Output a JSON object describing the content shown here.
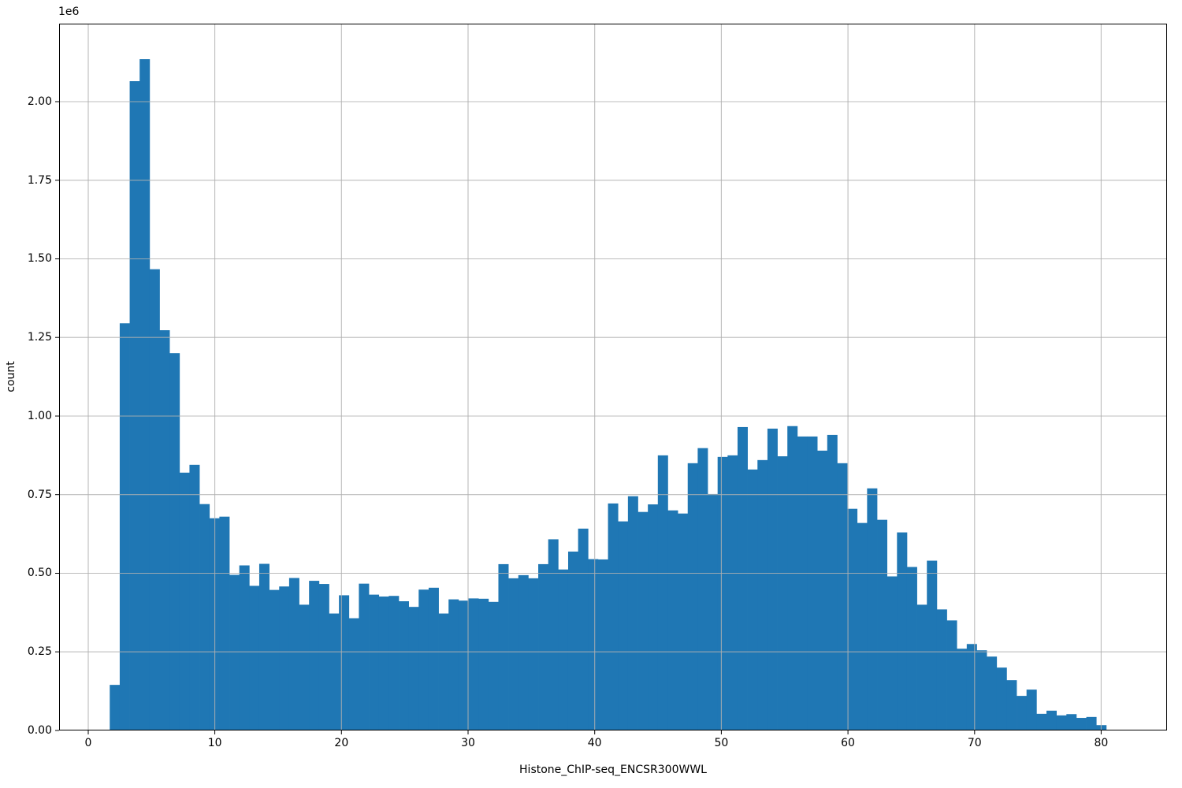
{
  "chart_data": {
    "type": "bar",
    "subtype": "histogram",
    "title": "",
    "xlabel": "Histone_ChIP-seq_ENCSR300WWL",
    "ylabel": "count",
    "offset_text": "1e6",
    "bar_color": "#1f77b4",
    "grid_color": "#b0b0b0",
    "spine_color": "#000000",
    "grid": true,
    "legend": false,
    "xlim": [
      -2.3,
      85.2
    ],
    "ylim": [
      0,
      2248000
    ],
    "x_ticks": [
      0,
      10,
      20,
      30,
      40,
      50,
      60,
      70,
      80
    ],
    "x_tick_labels": [
      "0",
      "10",
      "20",
      "30",
      "40",
      "50",
      "60",
      "70",
      "80"
    ],
    "y_ticks": [
      0,
      250000,
      500000,
      750000,
      1000000,
      1250000,
      1500000,
      1750000,
      2000000
    ],
    "y_tick_labels": [
      "0.00",
      "0.25",
      "0.50",
      "0.75",
      "1.00",
      "1.25",
      "1.50",
      "1.75",
      "2.00"
    ],
    "bin_start": 1.7,
    "bin_width": 0.787,
    "counts": [
      145000,
      1295000,
      2065000,
      2135000,
      1467000,
      1273000,
      1200000,
      820000,
      845000,
      720000,
      675000,
      680000,
      495000,
      525000,
      460000,
      530000,
      447000,
      458000,
      485000,
      400000,
      476000,
      466000,
      372000,
      430000,
      357000,
      467000,
      432000,
      426000,
      428000,
      411000,
      393000,
      448000,
      454000,
      372000,
      417000,
      413000,
      420000,
      419000,
      409000,
      529000,
      484000,
      494000,
      484000,
      529000,
      608000,
      512000,
      569000,
      642000,
      545000,
      544000,
      722000,
      665000,
      745000,
      695000,
      719000,
      875000,
      700000,
      690000,
      850000,
      898000,
      752000,
      870000,
      875000,
      965000,
      830000,
      860000,
      960000,
      872000,
      968000,
      935000,
      935000,
      890000,
      940000,
      850000,
      705000,
      660000,
      770000,
      670000,
      490000,
      630000,
      520000,
      400000,
      540000,
      385000,
      350000,
      260000,
      275000,
      255000,
      235000,
      200000,
      160000,
      110000,
      130000,
      53000,
      63000,
      48000,
      52000,
      40000,
      43000,
      17000
    ]
  }
}
